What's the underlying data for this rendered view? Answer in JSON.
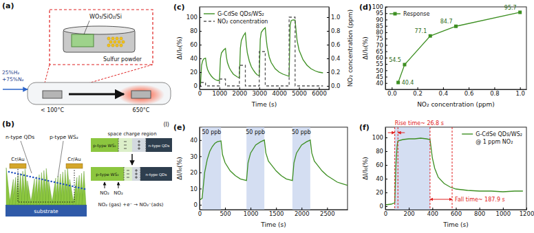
{
  "diagrams": {
    "a": {
      "label": "(a)",
      "sample": "WO₃/SiO₂/Si",
      "powder": "Sulfur powder",
      "gas": [
        "25%H₂",
        "+75%N₂"
      ],
      "zones": [
        "< 100°C",
        "650°C"
      ]
    },
    "b": {
      "label": "(b)",
      "qds": "n-type QDs",
      "ws2": "p-type WS₂",
      "electrodes": [
        "Cr/Au",
        "Cr/Au"
      ],
      "substrate": "substrate",
      "part": "(I)",
      "junction": {
        "title": "space charge region",
        "p": "p-type WS₂",
        "n": "n-type QDs",
        "gas": [
          "NO₂",
          "NO₂"
        ],
        "reaction": "NO₂ (gas) +e⁻ → NO₂⁻(ads)"
      }
    }
  },
  "chart_data": [
    {
      "type": "line",
      "title": "(c)",
      "xlabel": "Time (s)",
      "ylabel": "ΔI/I₀(%)",
      "y2label": "NO₂ concentration (ppm)",
      "xlim": [
        0,
        6500
      ],
      "xticks": [
        0,
        1000,
        2000,
        3000,
        4000,
        5000,
        6000
      ],
      "ylim": [
        -5,
        115
      ],
      "yticks": [
        0,
        20,
        40,
        60,
        80,
        100
      ],
      "y2lim": [
        -0.05,
        1.15
      ],
      "y2ticks": [
        {
          "value": 0,
          "label": "0.0"
        },
        0.2,
        0.4,
        0.6,
        0.8,
        {
          "value": 1,
          "label": "1.0"
        }
      ],
      "legend": "upper left",
      "series": [
        {
          "name": "G-CdSe QDs/WS₂",
          "color": "#3d8f22",
          "x": [
            0,
            50,
            100,
            150,
            200,
            250,
            300,
            350,
            400,
            500,
            600,
            700,
            800,
            900,
            1000,
            1050,
            1100,
            1200,
            1300,
            1350,
            1400,
            1500,
            1600,
            1700,
            1800,
            1900,
            2000,
            2050,
            2100,
            2200,
            2300,
            2350,
            2400,
            2500,
            2600,
            2700,
            2800,
            2900,
            3000,
            3050,
            3100,
            3200,
            3300,
            3350,
            3400,
            3500,
            3600,
            3800,
            4000,
            4200,
            4400,
            4500,
            4550,
            4600,
            4700,
            4800,
            4850,
            4900,
            5000,
            5200,
            5400,
            5600,
            5800,
            6000,
            6200
          ],
          "values": [
            2,
            3,
            30,
            36,
            39,
            40,
            40.4,
            30,
            24,
            18,
            14,
            11,
            9,
            8,
            8,
            40,
            48,
            52,
            54.5,
            42,
            34,
            26,
            21,
            17,
            15,
            13,
            12,
            55,
            66,
            73,
            77.1,
            60,
            48,
            36,
            28,
            23,
            19,
            16,
            15,
            68,
            78,
            82,
            84.7,
            68,
            56,
            42,
            34,
            25,
            20,
            17,
            15,
            14,
            88,
            95,
            96,
            95.7,
            80,
            66,
            52,
            38,
            30,
            25,
            22,
            20,
            19
          ]
        },
        {
          "name": "NO₂ concentration",
          "color": "#555555",
          "line_style": "dashed",
          "axis": "y2",
          "x": [
            0,
            50,
            50,
            300,
            300,
            1000,
            1000,
            1300,
            1300,
            2000,
            2000,
            2300,
            2300,
            3000,
            3000,
            3300,
            3300,
            4500,
            4500,
            4800,
            4800,
            6200
          ],
          "values": [
            0,
            0,
            0.05,
            0.05,
            0,
            0,
            0.1,
            0.1,
            0,
            0,
            0.3,
            0.3,
            0,
            0,
            0.5,
            0.5,
            0,
            0,
            1,
            1,
            0,
            0
          ]
        }
      ]
    },
    {
      "type": "line",
      "title": "(d)",
      "xlabel": "NO₂ concentration (ppm)",
      "ylabel": "ΔI/I₀(%)",
      "xlim": [
        -0.05,
        1.05
      ],
      "xticks": [
        {
          "value": 0,
          "label": "0.0"
        },
        0.2,
        0.4,
        0.6,
        0.8,
        {
          "value": 1,
          "label": "1.0"
        }
      ],
      "ylim": [
        35,
        100
      ],
      "yticks": [
        40,
        45,
        50,
        55,
        60,
        65,
        70,
        75,
        80,
        85,
        90,
        95,
        100
      ],
      "legend": "upper left",
      "data_labels": true,
      "series": [
        {
          "name": "Response",
          "color": "#3d8f22",
          "marker": "square",
          "x": [
            0.05,
            0.1,
            0.3,
            0.5,
            1.0
          ],
          "values": [
            40.4,
            54.5,
            77.1,
            84.7,
            95.7
          ]
        }
      ]
    },
    {
      "type": "line",
      "title": "(e)",
      "xlabel": "Time (s)",
      "ylabel": "ΔI/I₀(%)",
      "xlim": [
        0,
        2900
      ],
      "xticks": [
        0,
        500,
        1000,
        1500,
        2000,
        2500
      ],
      "ylim": [
        -3,
        48
      ],
      "yticks": [
        0,
        10,
        20,
        30,
        40
      ],
      "shaded": [
        {
          "x": [
            50,
            420
          ],
          "label": "50 ppb"
        },
        {
          "x": [
            920,
            1270
          ],
          "label": "50 ppb"
        },
        {
          "x": [
            1820,
            2170
          ],
          "label": "50 ppb"
        }
      ],
      "series": [
        {
          "color": "#3d8f22",
          "x": [
            0,
            50,
            100,
            150,
            200,
            250,
            300,
            350,
            420,
            450,
            500,
            600,
            700,
            800,
            920,
            950,
            1000,
            1100,
            1200,
            1270,
            1300,
            1350,
            1400,
            1500,
            1600,
            1700,
            1820,
            1850,
            1900,
            2000,
            2100,
            2170,
            2200,
            2250,
            2300,
            2400,
            2500,
            2600,
            2700,
            2800,
            2900
          ],
          "values": [
            3,
            4,
            20,
            28,
            33,
            36,
            38,
            39,
            39.5,
            31,
            26,
            21,
            18,
            16,
            15,
            26,
            32,
            37,
            39,
            40,
            32,
            27,
            25,
            21,
            18,
            16,
            15,
            26,
            32,
            37,
            39,
            40,
            32,
            27,
            25,
            21,
            18,
            16,
            14,
            13,
            12
          ]
        }
      ]
    },
    {
      "type": "line",
      "title": "(f)",
      "xlabel": "Time (s)",
      "ylabel": "ΔI/I₀(%)",
      "xlim": [
        0,
        1200
      ],
      "xticks": [
        0,
        200,
        400,
        600,
        800,
        1000,
        1200
      ],
      "ylim": [
        -5,
        115
      ],
      "yticks": [
        0,
        20,
        40,
        60,
        80,
        100
      ],
      "legend": "upper right",
      "annotations": [
        "@ 1 ppm NO₂"
      ],
      "shaded": [
        {
          "x": [
            80,
            380
          ]
        }
      ],
      "intervals": [
        {
          "x": [
            80,
            106.8
          ],
          "label": "Rise time~ 26.8 s"
        },
        {
          "x": [
            380,
            567.9
          ],
          "label": "Fall time~ 187.9 s"
        }
      ],
      "series": [
        {
          "name": "G-CdSe QDs/WS₂",
          "color": "#3d8f22",
          "x": [
            0,
            50,
            80,
            90,
            100,
            106.8,
            150,
            200,
            250,
            300,
            350,
            380,
            400,
            420,
            450,
            500,
            550,
            600,
            700,
            800,
            900,
            1000,
            1100,
            1170
          ],
          "values": [
            2,
            3,
            5,
            60,
            88,
            95,
            97,
            98,
            98,
            99,
            98,
            97,
            70,
            55,
            42,
            33,
            28,
            25,
            23,
            22,
            22,
            21,
            22,
            22
          ]
        }
      ]
    }
  ]
}
